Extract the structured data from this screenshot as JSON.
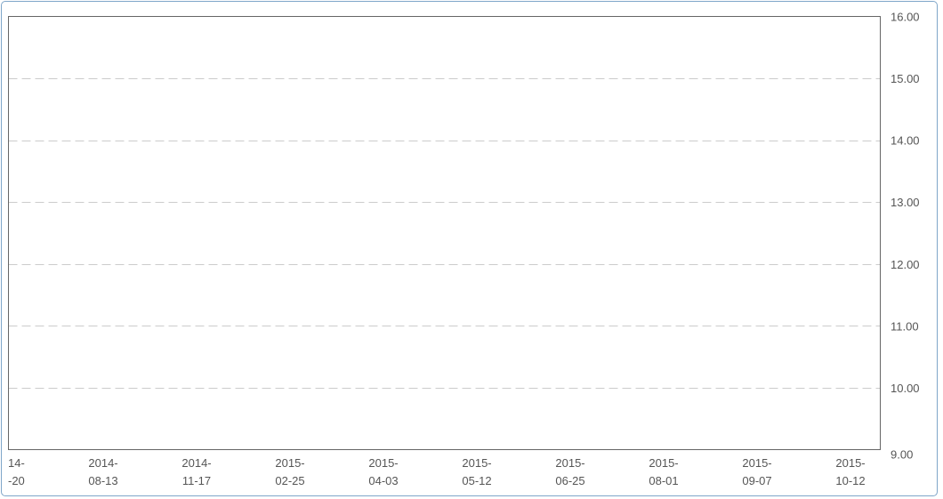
{
  "chart_data": {
    "type": "line",
    "title": "",
    "xlabel": "",
    "ylabel": "",
    "grid": true,
    "y_axis_position": "right",
    "ylim": [
      9.0,
      16.0
    ],
    "y_ticks": [
      "16.00",
      "15.00",
      "14.00",
      "13.00",
      "12.00",
      "11.00",
      "10.00",
      "9.00"
    ],
    "x_ticks": [
      [
        "14-",
        "-20"
      ],
      [
        "2014-",
        "08-13"
      ],
      [
        "2014-",
        "11-17"
      ],
      [
        "2015-",
        "02-25"
      ],
      [
        "2015-",
        "04-03"
      ],
      [
        "2015-",
        "05-12"
      ],
      [
        "2015-",
        "06-25"
      ],
      [
        "2015-",
        "08-01"
      ],
      [
        "2015-",
        "09-07"
      ],
      [
        "2015-",
        "10-12"
      ]
    ],
    "series": [],
    "colors": {
      "grid": "#cccccc",
      "axis": "#666666",
      "text": "#555555",
      "frame": "#7fa6c9"
    }
  }
}
